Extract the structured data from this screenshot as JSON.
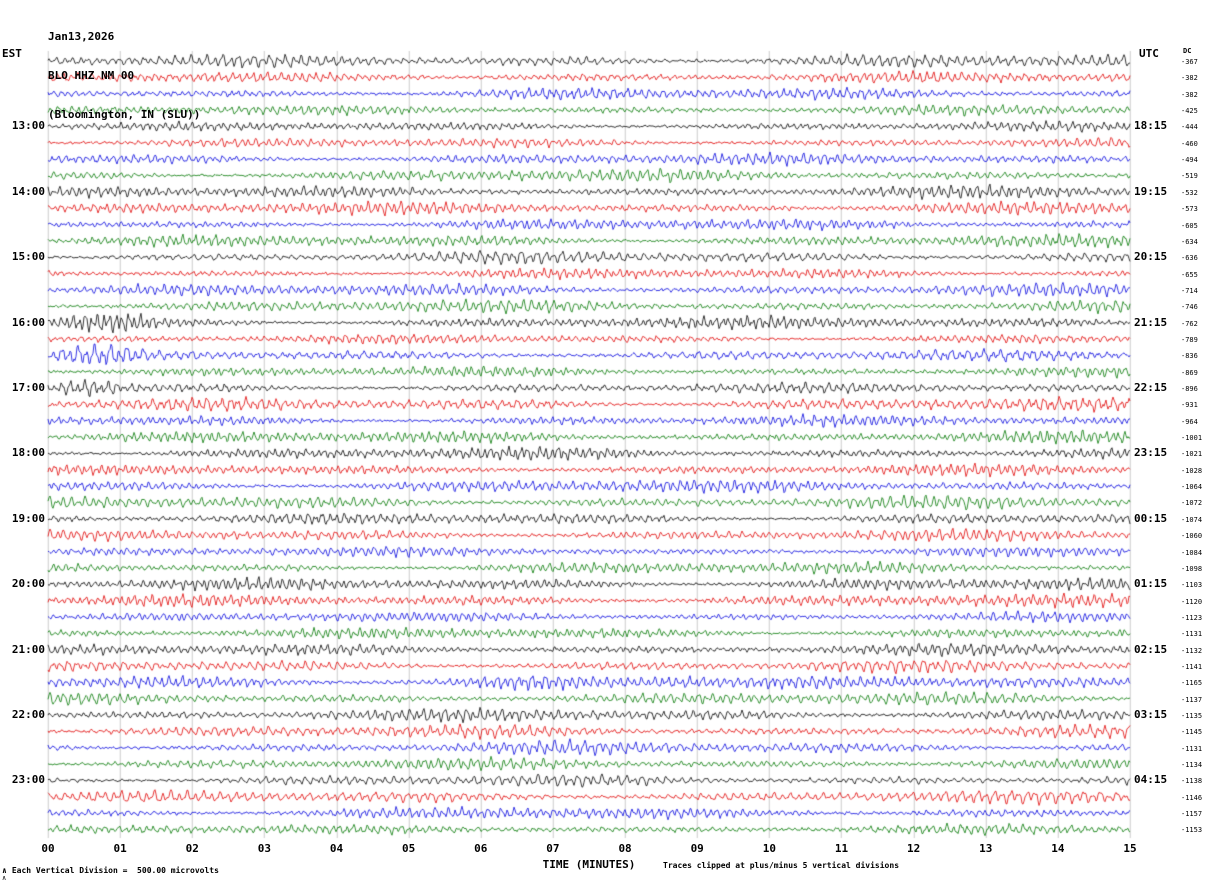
{
  "header": {
    "date": "Jan13,2026",
    "station": "BLO HHZ NM 00",
    "location": "(Bloomington, IN (SLU))"
  },
  "axes": {
    "left_tz": "EST",
    "right_tz": "UTC",
    "dc_label": "DC",
    "x_title": "TIME (MINUTES)"
  },
  "footer": {
    "scale_note": "Each Vertical Division =  500.00 microvolts",
    "clip_note": "Traces clipped at plus/minus 5 vertical divisions",
    "marker": "∧"
  },
  "colors": {
    "black": "#000000",
    "red": "#e00000",
    "blue": "#0000dd",
    "green": "#007700"
  },
  "chart_data": {
    "type": "seismogram-heliplot",
    "date": "Jan13,2026",
    "station": "BLO HHZ NM 00",
    "location": "Bloomington, IN (SLU)",
    "minutes_per_row": 15,
    "x_axis": {
      "label": "TIME (MINUTES)",
      "min": 0,
      "max": 15,
      "tick_labels": [
        "00",
        "01",
        "02",
        "03",
        "04",
        "05",
        "06",
        "07",
        "08",
        "09",
        "10",
        "11",
        "12",
        "13",
        "14",
        "15"
      ]
    },
    "left_time_axis": "EST",
    "right_time_axis": "UTC",
    "scale": "Each Vertical Division = 500.00 microvolts",
    "clipping": "Traces clipped at plus/minus 5 vertical divisions",
    "rows": [
      {
        "color": "black",
        "est": "",
        "utc": "",
        "dc": -367
      },
      {
        "color": "red",
        "est": "",
        "utc": "",
        "dc": -382
      },
      {
        "color": "blue",
        "est": "",
        "utc": "",
        "dc": -382
      },
      {
        "color": "green",
        "est": "",
        "utc": "",
        "dc": -425
      },
      {
        "color": "black",
        "est": "13:00",
        "utc": "18:15",
        "dc": -444
      },
      {
        "color": "red",
        "est": "",
        "utc": "",
        "dc": -460
      },
      {
        "color": "blue",
        "est": "",
        "utc": "",
        "dc": -494
      },
      {
        "color": "green",
        "est": "",
        "utc": "",
        "dc": -519
      },
      {
        "color": "black",
        "est": "14:00",
        "utc": "19:15",
        "dc": -532
      },
      {
        "color": "red",
        "est": "",
        "utc": "",
        "dc": -573
      },
      {
        "color": "blue",
        "est": "",
        "utc": "",
        "dc": -605
      },
      {
        "color": "green",
        "est": "",
        "utc": "",
        "dc": -634
      },
      {
        "color": "black",
        "est": "15:00",
        "utc": "20:15",
        "dc": -636
      },
      {
        "color": "red",
        "est": "",
        "utc": "",
        "dc": -655
      },
      {
        "color": "blue",
        "est": "",
        "utc": "",
        "dc": -714
      },
      {
        "color": "green",
        "est": "",
        "utc": "",
        "dc": -746
      },
      {
        "color": "black",
        "est": "16:00",
        "utc": "21:15",
        "dc": -762
      },
      {
        "color": "red",
        "est": "",
        "utc": "",
        "dc": -789
      },
      {
        "color": "blue",
        "est": "",
        "utc": "",
        "dc": -836
      },
      {
        "color": "green",
        "est": "",
        "utc": "",
        "dc": -869
      },
      {
        "color": "black",
        "est": "17:00",
        "utc": "22:15",
        "dc": -896
      },
      {
        "color": "red",
        "est": "",
        "utc": "",
        "dc": -931
      },
      {
        "color": "blue",
        "est": "",
        "utc": "",
        "dc": -964
      },
      {
        "color": "green",
        "est": "",
        "utc": "",
        "dc": -1001
      },
      {
        "color": "black",
        "est": "18:00",
        "utc": "23:15",
        "dc": -1021
      },
      {
        "color": "red",
        "est": "",
        "utc": "",
        "dc": -1028
      },
      {
        "color": "blue",
        "est": "",
        "utc": "",
        "dc": -1064
      },
      {
        "color": "green",
        "est": "",
        "utc": "",
        "dc": -1072
      },
      {
        "color": "black",
        "est": "19:00",
        "utc": "00:15",
        "dc": -1074
      },
      {
        "color": "red",
        "est": "",
        "utc": "",
        "dc": -1060
      },
      {
        "color": "blue",
        "est": "",
        "utc": "",
        "dc": -1084
      },
      {
        "color": "green",
        "est": "",
        "utc": "",
        "dc": -1098
      },
      {
        "color": "black",
        "est": "20:00",
        "utc": "01:15",
        "dc": -1103
      },
      {
        "color": "red",
        "est": "",
        "utc": "",
        "dc": -1120
      },
      {
        "color": "blue",
        "est": "",
        "utc": "",
        "dc": -1123
      },
      {
        "color": "green",
        "est": "",
        "utc": "",
        "dc": -1131
      },
      {
        "color": "black",
        "est": "21:00",
        "utc": "02:15",
        "dc": -1132
      },
      {
        "color": "red",
        "est": "",
        "utc": "",
        "dc": -1141
      },
      {
        "color": "blue",
        "est": "",
        "utc": "",
        "dc": -1165
      },
      {
        "color": "green",
        "est": "",
        "utc": "",
        "dc": -1137
      },
      {
        "color": "black",
        "est": "22:00",
        "utc": "03:15",
        "dc": -1135
      },
      {
        "color": "red",
        "est": "",
        "utc": "",
        "dc": -1145
      },
      {
        "color": "blue",
        "est": "",
        "utc": "",
        "dc": -1131
      },
      {
        "color": "green",
        "est": "",
        "utc": "",
        "dc": -1134
      },
      {
        "color": "black",
        "est": "23:00",
        "utc": "04:15",
        "dc": -1138
      },
      {
        "color": "red",
        "est": "",
        "utc": "",
        "dc": -1146
      },
      {
        "color": "blue",
        "est": "",
        "utc": "",
        "dc": -1157
      },
      {
        "color": "green",
        "est": "",
        "utc": "",
        "dc": -1153
      }
    ],
    "notable_bursts": [
      {
        "row": 16,
        "start_min": 0.0,
        "end_min": 1.6,
        "gain": 2.0
      },
      {
        "row": 18,
        "start_min": 0.0,
        "end_min": 1.4,
        "gain": 2.0
      },
      {
        "row": 20,
        "start_min": 0.0,
        "end_min": 1.1,
        "gain": 2.5
      },
      {
        "row": 38,
        "start_min": 5.5,
        "end_min": 9.5,
        "gain": 2.5
      }
    ]
  }
}
